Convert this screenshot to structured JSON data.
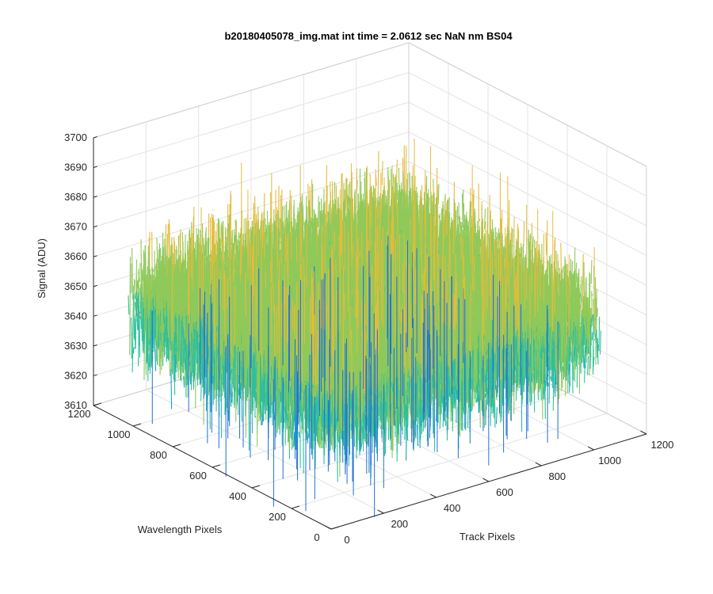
{
  "chart_data": {
    "type": "surface",
    "title": "b20180405078_img.mat int time = 2.0612 sec  NaN nm BS04",
    "xlabel": "Track Pixels",
    "ylabel": "Wavelength Pixels",
    "zlabel": "Signal (ADU)",
    "xlim": [
      0,
      1200
    ],
    "ylim": [
      0,
      1200
    ],
    "zlim": [
      3610,
      3700
    ],
    "xticks": [
      "0",
      "200",
      "400",
      "600",
      "800",
      "1000",
      "1200"
    ],
    "yticks": [
      "0",
      "200",
      "400",
      "600",
      "800",
      "1000",
      "1200"
    ],
    "zticks": [
      "3610",
      "3620",
      "3630",
      "3640",
      "3650",
      "3660",
      "3670",
      "3680",
      "3690",
      "3700"
    ],
    "data_extent": {
      "x": [
        0,
        1024
      ],
      "y": [
        0,
        1024
      ]
    },
    "signal_mean": 3650,
    "signal_range": [
      3605,
      3690
    ],
    "colormap": [
      "#1f6fd8",
      "#12a3c9",
      "#2fbf9d",
      "#8fc95a",
      "#e3bc3b"
    ],
    "grid": true,
    "legend": "none"
  }
}
